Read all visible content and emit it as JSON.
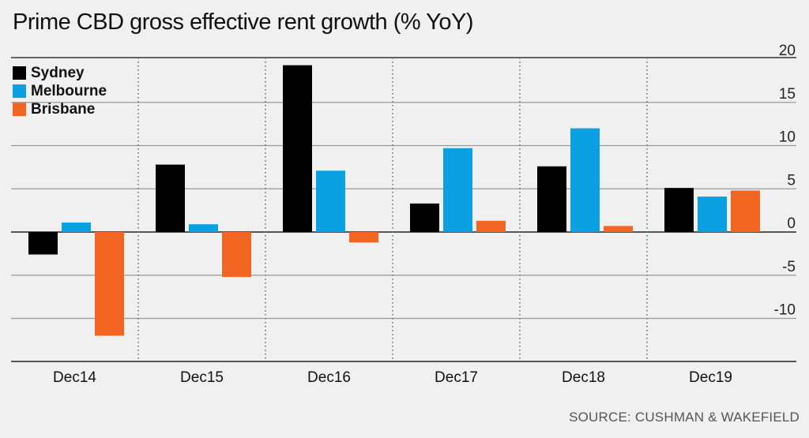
{
  "title": "Prime CBD gross effective rent growth (% YoY)",
  "source": "SOURCE: CUSHMAN & WAKEFIELD",
  "colors": {
    "Sydney": "#000000",
    "Melbourne": "#0aa0e2",
    "Brisbane": "#f26522",
    "grid": "#999999"
  },
  "chart_data": {
    "type": "bar",
    "title": "Prime CBD gross effective rent growth (% YoY)",
    "categories": [
      "Dec14",
      "Dec15",
      "Dec16",
      "Dec17",
      "Dec18",
      "Dec19"
    ],
    "series": [
      {
        "name": "Sydney",
        "values": [
          -2.6,
          7.8,
          19.3,
          3.3,
          7.6,
          5.1
        ]
      },
      {
        "name": "Melbourne",
        "values": [
          1.1,
          0.9,
          7.1,
          9.7,
          12.0,
          4.1
        ]
      },
      {
        "name": "Brisbane",
        "values": [
          -12.0,
          -5.2,
          -1.2,
          1.3,
          0.7,
          4.8
        ]
      }
    ],
    "yticks": [
      "20",
      "15",
      "10",
      "5",
      "0",
      "-5",
      "-10"
    ],
    "ytick_values": [
      20,
      15,
      10,
      5,
      0,
      -5,
      -10
    ],
    "ylim": [
      -15,
      20
    ],
    "xlabel": "",
    "ylabel": "",
    "legend": "top-left",
    "grid": true
  }
}
